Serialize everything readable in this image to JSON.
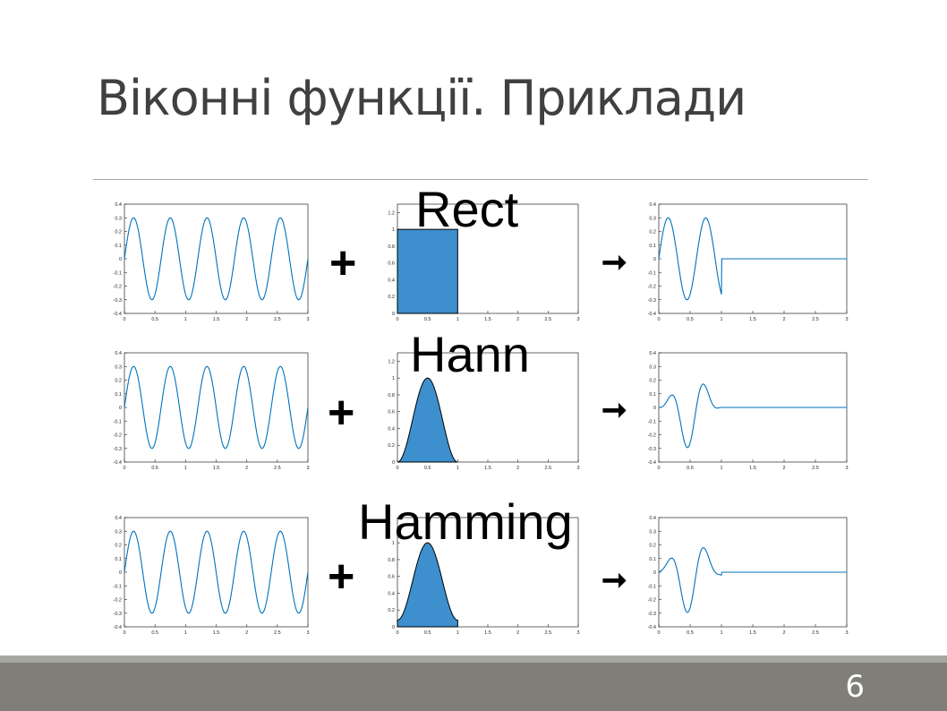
{
  "slide": {
    "title": "Віконні функції. Приклади",
    "page_number": "6"
  },
  "operators": {
    "plus": "+",
    "arrow": "➞"
  },
  "colors": {
    "line": "#0072bd",
    "fill": "#3d8fce",
    "title": "#404040",
    "rule": "#a6a6a6",
    "footer": "#7f7f78"
  },
  "rows": [
    {
      "label": "Rect"
    },
    {
      "label": "Hann"
    },
    {
      "label": "Hamming"
    }
  ],
  "chart_data": [
    {
      "type": "line",
      "series": "input-sine",
      "row": 0,
      "amplitude": 0.3,
      "frequency": 1.6667,
      "xlim": [
        0,
        3
      ],
      "ylim": [
        -0.4,
        0.4
      ],
      "xticks": [
        "0",
        "0.5",
        "1",
        "1.5",
        "2",
        "2.5",
        "3"
      ],
      "yticks": [
        "0.4",
        "0.3",
        "0.2",
        "0.1",
        "0",
        "-0.1",
        "-0.2",
        "-0.3",
        "-0.4"
      ]
    },
    {
      "type": "area",
      "series": "window-rect",
      "row": 0,
      "window": "rect",
      "support": [
        0,
        1
      ],
      "peak": 1,
      "xlim": [
        0,
        3
      ],
      "ylim": [
        0,
        1.3
      ],
      "xticks": [
        "0",
        "0.5",
        "1",
        "1.5",
        "2",
        "2.5",
        "3"
      ],
      "yticks": [
        "1.2",
        "1",
        "0.8",
        "0.6",
        "0.4",
        "0.2",
        "0"
      ]
    },
    {
      "type": "line",
      "series": "windowed-rect",
      "row": 0,
      "window": "rect",
      "amplitude": 0.3,
      "frequency": 1.6667,
      "support": [
        0,
        1
      ],
      "xlim": [
        0,
        3
      ],
      "ylim": [
        -0.4,
        0.4
      ],
      "xticks": [
        "0",
        "0.5",
        "1",
        "1.5",
        "2",
        "2.5",
        "3"
      ],
      "yticks": [
        "0.4",
        "0.3",
        "0.2",
        "0.1",
        "0",
        "-0.1",
        "-0.2",
        "-0.3",
        "-0.4"
      ]
    },
    {
      "type": "line",
      "series": "input-sine",
      "row": 1,
      "amplitude": 0.3,
      "frequency": 1.6667,
      "xlim": [
        0,
        3
      ],
      "ylim": [
        -0.4,
        0.4
      ],
      "xticks": [
        "0",
        "0.5",
        "1",
        "1.5",
        "2",
        "2.5",
        "3"
      ],
      "yticks": [
        "0.4",
        "0.3",
        "0.2",
        "0.1",
        "0",
        "-0.1",
        "-0.2",
        "-0.3",
        "-0.4"
      ]
    },
    {
      "type": "area",
      "series": "window-hann",
      "row": 1,
      "window": "hann",
      "support": [
        0,
        1
      ],
      "peak": 1,
      "xlim": [
        0,
        3
      ],
      "ylim": [
        0,
        1.3
      ],
      "xticks": [
        "0",
        "0.5",
        "1",
        "1.5",
        "2",
        "2.5",
        "3"
      ],
      "yticks": [
        "1.2",
        "1",
        "0.8",
        "0.6",
        "0.4",
        "0.2",
        "0"
      ]
    },
    {
      "type": "line",
      "series": "windowed-hann",
      "row": 1,
      "window": "hann",
      "amplitude": 0.3,
      "frequency": 1.6667,
      "support": [
        0,
        1
      ],
      "xlim": [
        0,
        3
      ],
      "ylim": [
        -0.4,
        0.4
      ],
      "xticks": [
        "0",
        "0.5",
        "1",
        "1.5",
        "2",
        "2.5",
        "3"
      ],
      "yticks": [
        "0.4",
        "0.3",
        "0.2",
        "0.1",
        "0",
        "-0.1",
        "-0.2",
        "-0.3",
        "-0.4"
      ]
    },
    {
      "type": "line",
      "series": "input-sine",
      "row": 2,
      "amplitude": 0.3,
      "frequency": 1.6667,
      "xlim": [
        0,
        3
      ],
      "ylim": [
        -0.4,
        0.4
      ],
      "xticks": [
        "0",
        "0.5",
        "1",
        "1.5",
        "2",
        "2.5",
        "3"
      ],
      "yticks": [
        "0.4",
        "0.3",
        "0.2",
        "0.1",
        "0",
        "-0.1",
        "-0.2",
        "-0.3",
        "-0.4"
      ]
    },
    {
      "type": "area",
      "series": "window-hamming",
      "row": 2,
      "window": "hamming",
      "support": [
        0,
        1
      ],
      "peak": 1,
      "xlim": [
        0,
        3
      ],
      "ylim": [
        0,
        1.3
      ],
      "xticks": [
        "0",
        "0.5",
        "1",
        "1.5",
        "2",
        "2.5",
        "3"
      ],
      "yticks": [
        "1",
        "0.8",
        "0.6",
        "0.4",
        "0.2",
        "0"
      ]
    },
    {
      "type": "line",
      "series": "windowed-hamming",
      "row": 2,
      "window": "hamming",
      "amplitude": 0.3,
      "frequency": 1.6667,
      "support": [
        0,
        1
      ],
      "xlim": [
        0,
        3
      ],
      "ylim": [
        -0.4,
        0.4
      ],
      "xticks": [
        "0",
        "0.5",
        "1",
        "1.5",
        "2",
        "2.5",
        "3"
      ],
      "yticks": [
        "0.4",
        "0.3",
        "0.2",
        "0.1",
        "0",
        "-0.1",
        "-0.2",
        "-0.3",
        "-0.4"
      ]
    }
  ]
}
